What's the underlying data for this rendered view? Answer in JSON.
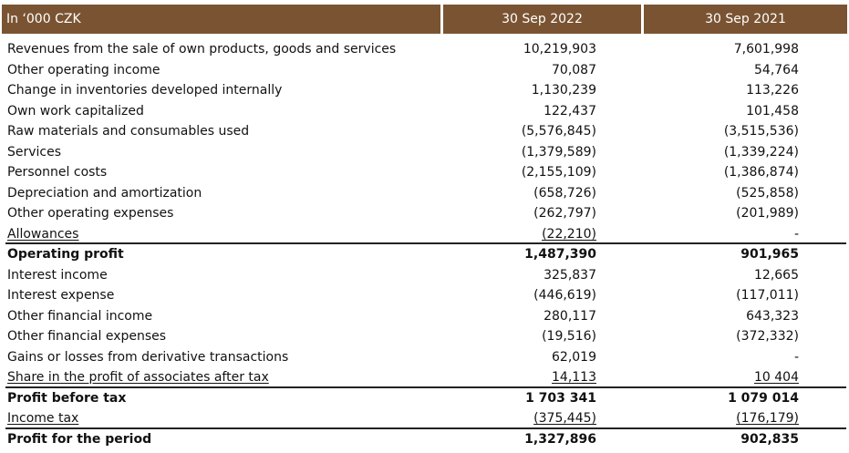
{
  "header": {
    "label": "In ‘000 CZK",
    "col1": "30 Sep 2022",
    "col2": "30 Sep 2021"
  },
  "rows": [
    {
      "label": "Revenues from the sale of own products, goods and services",
      "v1": "10,219,903",
      "v2": "7,601,998"
    },
    {
      "label": "Other operating income",
      "v1": "70,087",
      "v2": "54,764"
    },
    {
      "label": "Change in inventories developed internally",
      "v1": "1,130,239",
      "v2": "113,226"
    },
    {
      "label": "Own work capitalized",
      "v1": "122,437",
      "v2": "101,458"
    },
    {
      "label": "Raw materials and consumables used",
      "v1": "(5,576,845)",
      "v2": "(3,515,536)"
    },
    {
      "label": "Services",
      "v1": "(1,379,589)",
      "v2": "(1,339,224)"
    },
    {
      "label": "Personnel costs",
      "v1": "(2,155,109)",
      "v2": "(1,386,874)"
    },
    {
      "label": "Depreciation and amortization",
      "v1": "(658,726)",
      "v2": "(525,858)"
    },
    {
      "label": "Other operating expenses",
      "v1": "(262,797)",
      "v2": "(201,989)"
    },
    {
      "label": "Allowances",
      "v1": "(22,210)",
      "v2": "-"
    },
    {
      "label": "Operating profit",
      "v1": "1,487,390",
      "v2": "901,965"
    },
    {
      "label": "Interest income",
      "v1": "325,837",
      "v2": "12,665"
    },
    {
      "label": "Interest expense",
      "v1": "(446,619)",
      "v2": "(117,011)"
    },
    {
      "label": "Other financial income",
      "v1": "280,117",
      "v2": "643,323"
    },
    {
      "label": "Other financial expenses",
      "v1": "(19,516)",
      "v2": "(372,332)"
    },
    {
      "label": "Gains or losses from derivative transactions",
      "v1": "62,019",
      "v2": "-"
    },
    {
      "label": "Share in the profit of associates after tax",
      "v1": "14,113",
      "v2": "10 404"
    },
    {
      "label": "Profit before tax",
      "v1": "1 703 341",
      "v2": "1 079 014"
    },
    {
      "label": "Income tax",
      "v1": "(375,445)",
      "v2": "(176,179)"
    },
    {
      "label": "Profit for the period",
      "v1": "1,327,896",
      "v2": "902,835"
    }
  ]
}
